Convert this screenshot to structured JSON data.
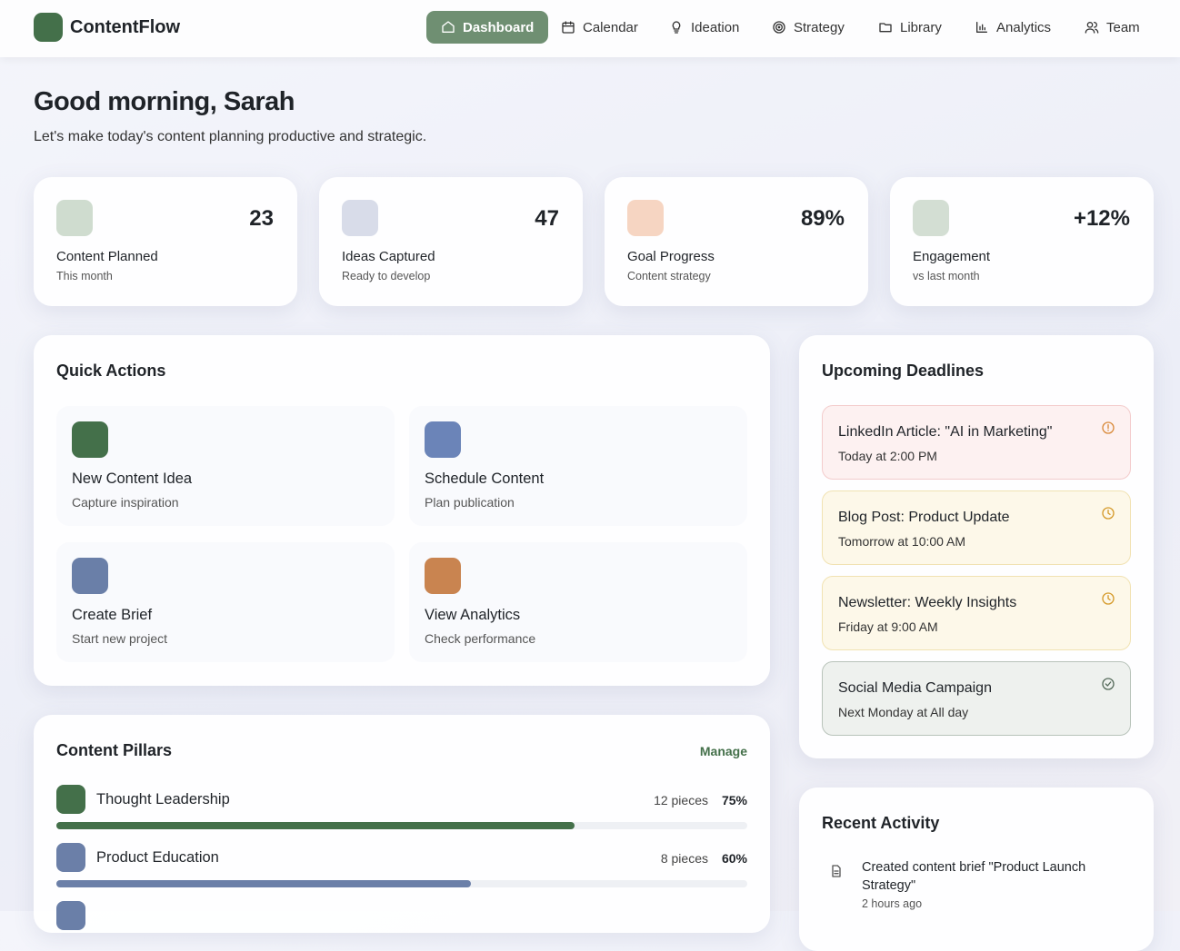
{
  "brand": "ContentFlow",
  "nav": [
    "Dashboard",
    "Calendar",
    "Ideation",
    "Strategy",
    "Library",
    "Analytics",
    "Team"
  ],
  "greeting": {
    "title": "Good morning, Sarah",
    "subtitle": "Let's make today's content planning productive and strategic."
  },
  "stats": [
    {
      "value": "23",
      "label": "Content Planned",
      "sub": "This month"
    },
    {
      "value": "47",
      "label": "Ideas Captured",
      "sub": "Ready to develop"
    },
    {
      "value": "89%",
      "label": "Goal Progress",
      "sub": "Content strategy"
    },
    {
      "value": "+12%",
      "label": "Engagement",
      "sub": "vs last month"
    }
  ],
  "quick_actions": {
    "title": "Quick Actions",
    "items": [
      {
        "title": "New Content Idea",
        "subtitle": "Capture inspiration"
      },
      {
        "title": "Schedule Content",
        "subtitle": "Plan publication"
      },
      {
        "title": "Create Brief",
        "subtitle": "Start new project"
      },
      {
        "title": "View Analytics",
        "subtitle": "Check performance"
      }
    ]
  },
  "deadlines": {
    "title": "Upcoming Deadlines",
    "items": [
      {
        "title": "LinkedIn Article: \"AI in Marketing\"",
        "time": "Today at 2:00 PM"
      },
      {
        "title": "Blog Post: Product Update",
        "time": "Tomorrow at 10:00 AM"
      },
      {
        "title": "Newsletter: Weekly Insights",
        "time": "Friday at 9:00 AM"
      },
      {
        "title": "Social Media Campaign",
        "time": "Next Monday at All day"
      }
    ]
  },
  "pillars": {
    "title": "Content Pillars",
    "action": "Manage",
    "items": [
      {
        "name": "Thought Leadership",
        "pieces": "12 pieces",
        "progress": 75,
        "progress_label": "75%"
      },
      {
        "name": "Product Education",
        "pieces": "8 pieces",
        "progress": 60,
        "progress_label": "60%"
      }
    ]
  },
  "activity": {
    "title": "Recent Activity",
    "items": [
      {
        "text": "Created content brief \"Product Launch Strategy\"",
        "time": "2 hours ago"
      }
    ]
  }
}
